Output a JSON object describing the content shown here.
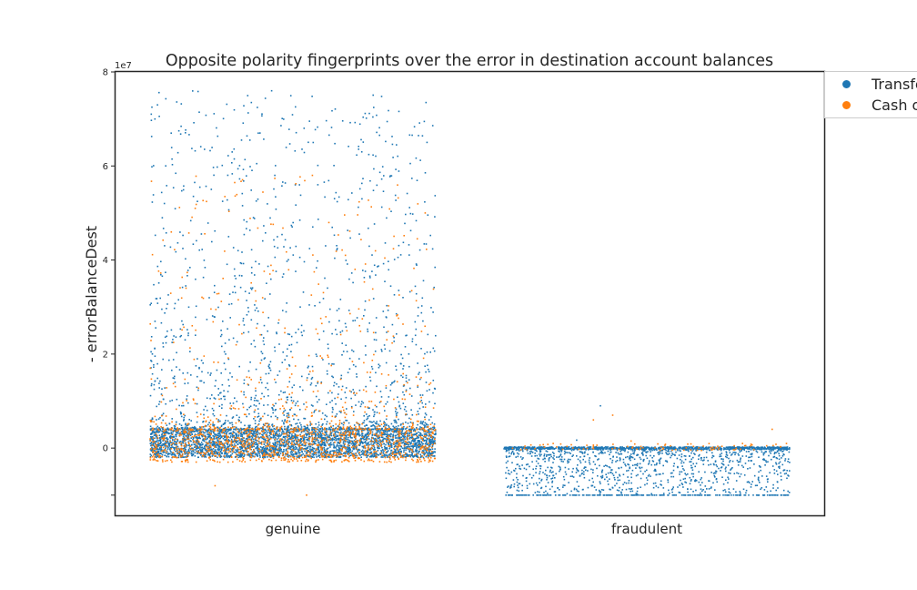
{
  "chart_data": {
    "type": "scatter",
    "title": "Opposite polarity fingerprints over the error in destination account balances",
    "xlabel": "",
    "ylabel": "- errorBalanceDest",
    "y_offset_label": "1e7",
    "categories": [
      "genuine",
      "fraudulent"
    ],
    "yticks": [
      -10000000,
      0,
      20000000,
      40000000,
      60000000,
      80000000
    ],
    "ytick_labels": [
      "",
      "0",
      "2",
      "4",
      "6",
      "8"
    ],
    "ylim": [
      -14300000,
      80000000
    ],
    "grid": false,
    "legend_position": "top-right, outside plot",
    "series": [
      {
        "name": "Transfer",
        "color": "#1f77b4",
        "values_by_category": {
          "genuine": {
            "dense_band": [
              -2000000,
              4000000
            ],
            "spread_to": 76000000,
            "notable_points": [
              73000000,
              76000000,
              75600000,
              67000000,
              65000000,
              63000000
            ]
          },
          "fraudulent": {
            "dense_band": [
              -10000000,
              0
            ],
            "floor": -10000000,
            "notable_points": [
              9000000,
              1700000
            ]
          }
        }
      },
      {
        "name": "Cash out",
        "color": "#ff7f0e",
        "values_by_category": {
          "genuine": {
            "dense_band": [
              -3000000,
              4000000
            ],
            "spread_to": 58000000,
            "notable_points": [
              58000000,
              51000000,
              50000000,
              -10000000,
              -8000000
            ]
          },
          "fraudulent": {
            "dense_band": [
              -500000,
              1000000
            ],
            "notable_points": [
              7000000,
              6000000,
              4000000,
              1500000
            ]
          }
        }
      }
    ],
    "legend_labels": [
      "Transfer",
      "Cash out"
    ]
  }
}
